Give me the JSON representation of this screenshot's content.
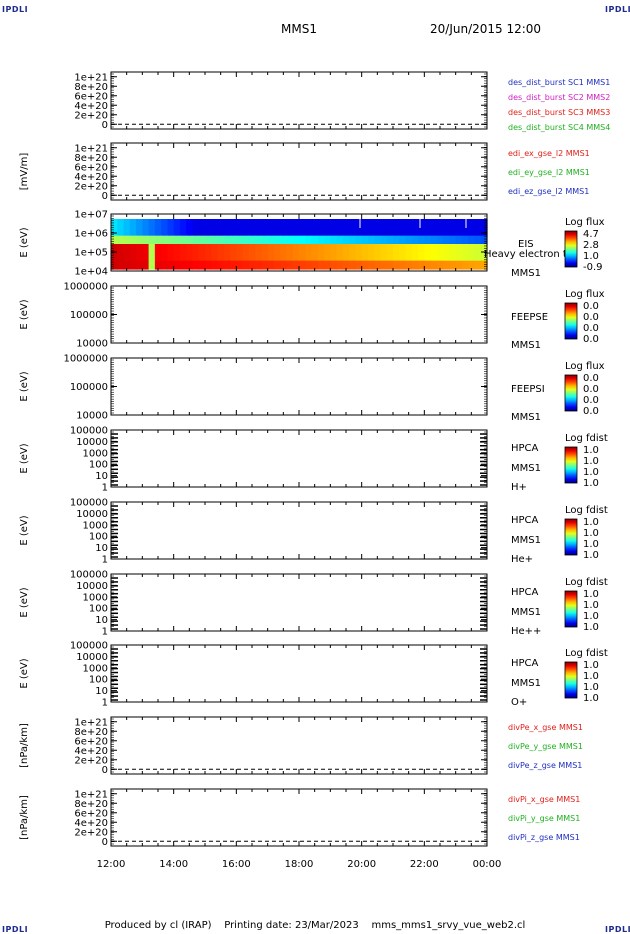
{
  "header": {
    "mission": "MMS1",
    "datetime": "20/Jun/2015 12:00",
    "corner_label": "IPDLI"
  },
  "footer": {
    "produced": "Produced by cl (IRAP)",
    "printing": "Printing date: 23/Mar/2023",
    "script": "mms_mms1_srvy_vue_web2.cl"
  },
  "chart_data": {
    "type": "stacked-timeseries",
    "time_axis": {
      "start": "12:00",
      "end": "00:00",
      "ticks": [
        "12:00",
        "14:00",
        "16:00",
        "18:00",
        "20:00",
        "22:00",
        "00:00"
      ]
    },
    "panels": [
      {
        "id": "des",
        "kind": "line",
        "ylabel": "",
        "yticks": [
          "1e+21",
          "8e+20",
          "6e+20",
          "4e+20",
          "2e+20",
          "0"
        ],
        "ylim": [
          -1e+20,
          1.1e+21
        ],
        "zero_line": true,
        "legend": [
          {
            "label": "des_dist_burst SC1 MMS1",
            "color": "#1f2fbf"
          },
          {
            "label": "des_dist_burst SC2 MMS2",
            "color": "#d020c0"
          },
          {
            "label": "des_dist_burst SC3 MMS3",
            "color": "#e0201a"
          },
          {
            "label": "des_dist_burst SC4 MMS4",
            "color": "#20b020"
          }
        ]
      },
      {
        "id": "edi",
        "kind": "line",
        "ylabel": "[mV/m]",
        "yticks": [
          "1e+21",
          "8e+20",
          "6e+20",
          "4e+20",
          "2e+20",
          "0"
        ],
        "ylim": [
          -1e+20,
          1.1e+21
        ],
        "zero_line": true,
        "legend": [
          {
            "label": "edi_ex_gse_l2 MMS1",
            "color": "#e0201a"
          },
          {
            "label": "edi_ey_gse_l2 MMS1",
            "color": "#20b020"
          },
          {
            "label": "edi_ez_gse_l2 MMS1",
            "color": "#1f2fbf"
          }
        ]
      },
      {
        "id": "eis",
        "kind": "spectrogram",
        "ylabel": "E (eV)",
        "yticks": [
          "1e+07",
          "1e+06",
          "1e+05",
          "1e+04"
        ],
        "labels": [
          "EIS",
          "Heavy electron to",
          "MMS1"
        ],
        "colorbar": {
          "title": "Log flux",
          "ticks": [
            "4.7",
            "2.8",
            "1.0",
            "-0.9"
          ]
        }
      },
      {
        "id": "feepse",
        "kind": "spectrogram",
        "ylabel": "E (eV)",
        "yticks": [
          "1000000",
          "100000",
          "10000"
        ],
        "labels": [
          "FEEPSE",
          "MMS1"
        ],
        "colorbar": {
          "title": "Log flux",
          "ticks": [
            "0.0",
            "0.0",
            "0.0",
            "0.0"
          ]
        }
      },
      {
        "id": "feepsi",
        "kind": "spectrogram",
        "ylabel": "E (eV)",
        "yticks": [
          "1000000",
          "100000",
          "10000"
        ],
        "labels": [
          "FEEPSI",
          "MMS1"
        ],
        "colorbar": {
          "title": "Log flux",
          "ticks": [
            "0.0",
            "0.0",
            "0.0",
            "0.0"
          ]
        }
      },
      {
        "id": "hpca_h",
        "kind": "spectrogram",
        "ylabel": "E (eV)",
        "yticks": [
          "100000",
          "10000",
          "1000",
          "100",
          "10",
          "1"
        ],
        "labels": [
          "HPCA",
          "MMS1",
          "H+"
        ],
        "colorbar": {
          "title": "Log fdist",
          "ticks": [
            "1.0",
            "1.0",
            "1.0",
            "1.0"
          ]
        }
      },
      {
        "id": "hpca_he",
        "kind": "spectrogram",
        "ylabel": "E (eV)",
        "yticks": [
          "100000",
          "10000",
          "1000",
          "100",
          "10",
          "1"
        ],
        "labels": [
          "HPCA",
          "MMS1",
          "He+"
        ],
        "colorbar": {
          "title": "Log fdist",
          "ticks": [
            "1.0",
            "1.0",
            "1.0",
            "1.0"
          ]
        }
      },
      {
        "id": "hpca_hepp",
        "kind": "spectrogram",
        "ylabel": "E (eV)",
        "yticks": [
          "100000",
          "10000",
          "1000",
          "100",
          "10",
          "1"
        ],
        "labels": [
          "HPCA",
          "MMS1",
          "He++"
        ],
        "colorbar": {
          "title": "Log fdist",
          "ticks": [
            "1.0",
            "1.0",
            "1.0",
            "1.0"
          ]
        }
      },
      {
        "id": "hpca_o",
        "kind": "spectrogram",
        "ylabel": "E (eV)",
        "yticks": [
          "100000",
          "10000",
          "1000",
          "100",
          "10",
          "1"
        ],
        "labels": [
          "HPCA",
          "MMS1",
          "O+"
        ],
        "colorbar": {
          "title": "Log fdist",
          "ticks": [
            "1.0",
            "1.0",
            "1.0",
            "1.0"
          ]
        }
      },
      {
        "id": "divpe",
        "kind": "line",
        "ylabel": "[nPa/km]",
        "yticks": [
          "1e+21",
          "8e+20",
          "6e+20",
          "4e+20",
          "2e+20",
          "0"
        ],
        "ylim": [
          -1e+20,
          1.1e+21
        ],
        "zero_line": true,
        "legend": [
          {
            "label": "divPe_x_gse MMS1",
            "color": "#e0201a"
          },
          {
            "label": "divPe_y_gse MMS1",
            "color": "#20b020"
          },
          {
            "label": "divPe_z_gse MMS1",
            "color": "#1f2fbf"
          }
        ]
      },
      {
        "id": "divpi",
        "kind": "line",
        "ylabel": "[nPa/km]",
        "yticks": [
          "1e+21",
          "8e+20",
          "6e+20",
          "4e+20",
          "2e+20",
          "0"
        ],
        "ylim": [
          -1e+20,
          1.1e+21
        ],
        "zero_line": true,
        "legend": [
          {
            "label": "divPi_x_gse MMS1",
            "color": "#e0201a"
          },
          {
            "label": "divPi_y_gse MMS1",
            "color": "#20b020"
          },
          {
            "label": "divPi_z_gse MMS1",
            "color": "#1f2fbf"
          }
        ]
      }
    ]
  }
}
